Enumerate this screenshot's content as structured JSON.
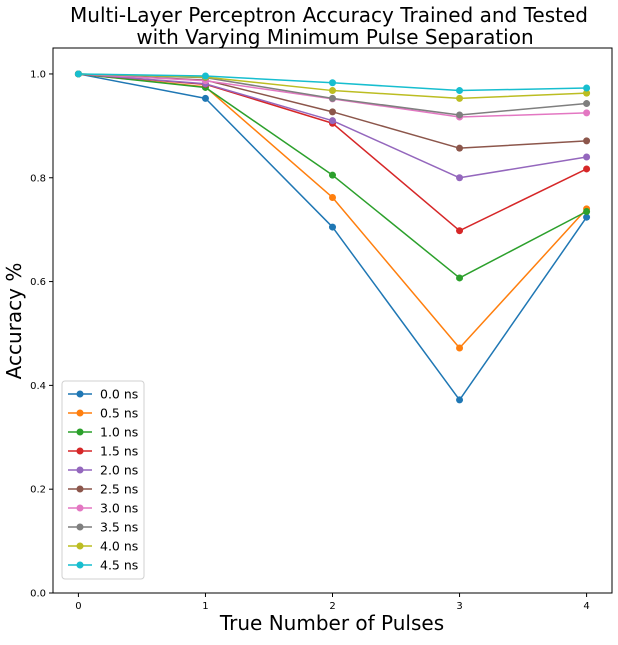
{
  "chart_data": {
    "type": "line",
    "title_lines": [
      "Multi-Layer Perceptron Accuracy Trained and Tested",
      "with Varying Minimum Pulse Separation"
    ],
    "xlabel": "True Number of Pulses",
    "ylabel": "Accuracy %",
    "x": [
      0,
      1,
      2,
      3,
      4
    ],
    "x_tick_labels": [
      "0",
      "1",
      "2",
      "3",
      "4"
    ],
    "y_tick_labels": [
      "0.0",
      "0.2",
      "0.4",
      "0.6",
      "0.8",
      "1.0"
    ],
    "y_ticks": [
      0.0,
      0.2,
      0.4,
      0.6,
      0.8,
      1.0
    ],
    "xlim": [
      -0.2,
      4.2
    ],
    "ylim": [
      0.0,
      1.05
    ],
    "grid": false,
    "legend_position": "lower-left",
    "marker": "circle",
    "series": [
      {
        "name": "0.0 ns",
        "color": "#1f77b4",
        "values": [
          1.0,
          0.953,
          0.705,
          0.372,
          0.724
        ]
      },
      {
        "name": "0.5 ns",
        "color": "#ff7f0e",
        "values": [
          1.0,
          0.975,
          0.762,
          0.472,
          0.74
        ]
      },
      {
        "name": "1.0 ns",
        "color": "#2ca02c",
        "values": [
          1.0,
          0.974,
          0.805,
          0.607,
          0.735
        ]
      },
      {
        "name": "1.5 ns",
        "color": "#d62728",
        "values": [
          1.0,
          0.98,
          0.905,
          0.698,
          0.817
        ]
      },
      {
        "name": "2.0 ns",
        "color": "#9467bd",
        "values": [
          1.0,
          0.981,
          0.91,
          0.8,
          0.84
        ]
      },
      {
        "name": "2.5 ns",
        "color": "#8c564b",
        "values": [
          1.0,
          0.988,
          0.927,
          0.857,
          0.871
        ]
      },
      {
        "name": "3.0 ns",
        "color": "#e377c2",
        "values": [
          1.0,
          0.987,
          0.952,
          0.917,
          0.925
        ]
      },
      {
        "name": "3.5 ns",
        "color": "#7f7f7f",
        "values": [
          1.0,
          0.993,
          0.953,
          0.921,
          0.943
        ]
      },
      {
        "name": "4.0 ns",
        "color": "#bcbd22",
        "values": [
          1.0,
          0.994,
          0.968,
          0.953,
          0.963
        ]
      },
      {
        "name": "4.5 ns",
        "color": "#17becf",
        "values": [
          1.0,
          0.996,
          0.983,
          0.968,
          0.973
        ]
      }
    ]
  }
}
